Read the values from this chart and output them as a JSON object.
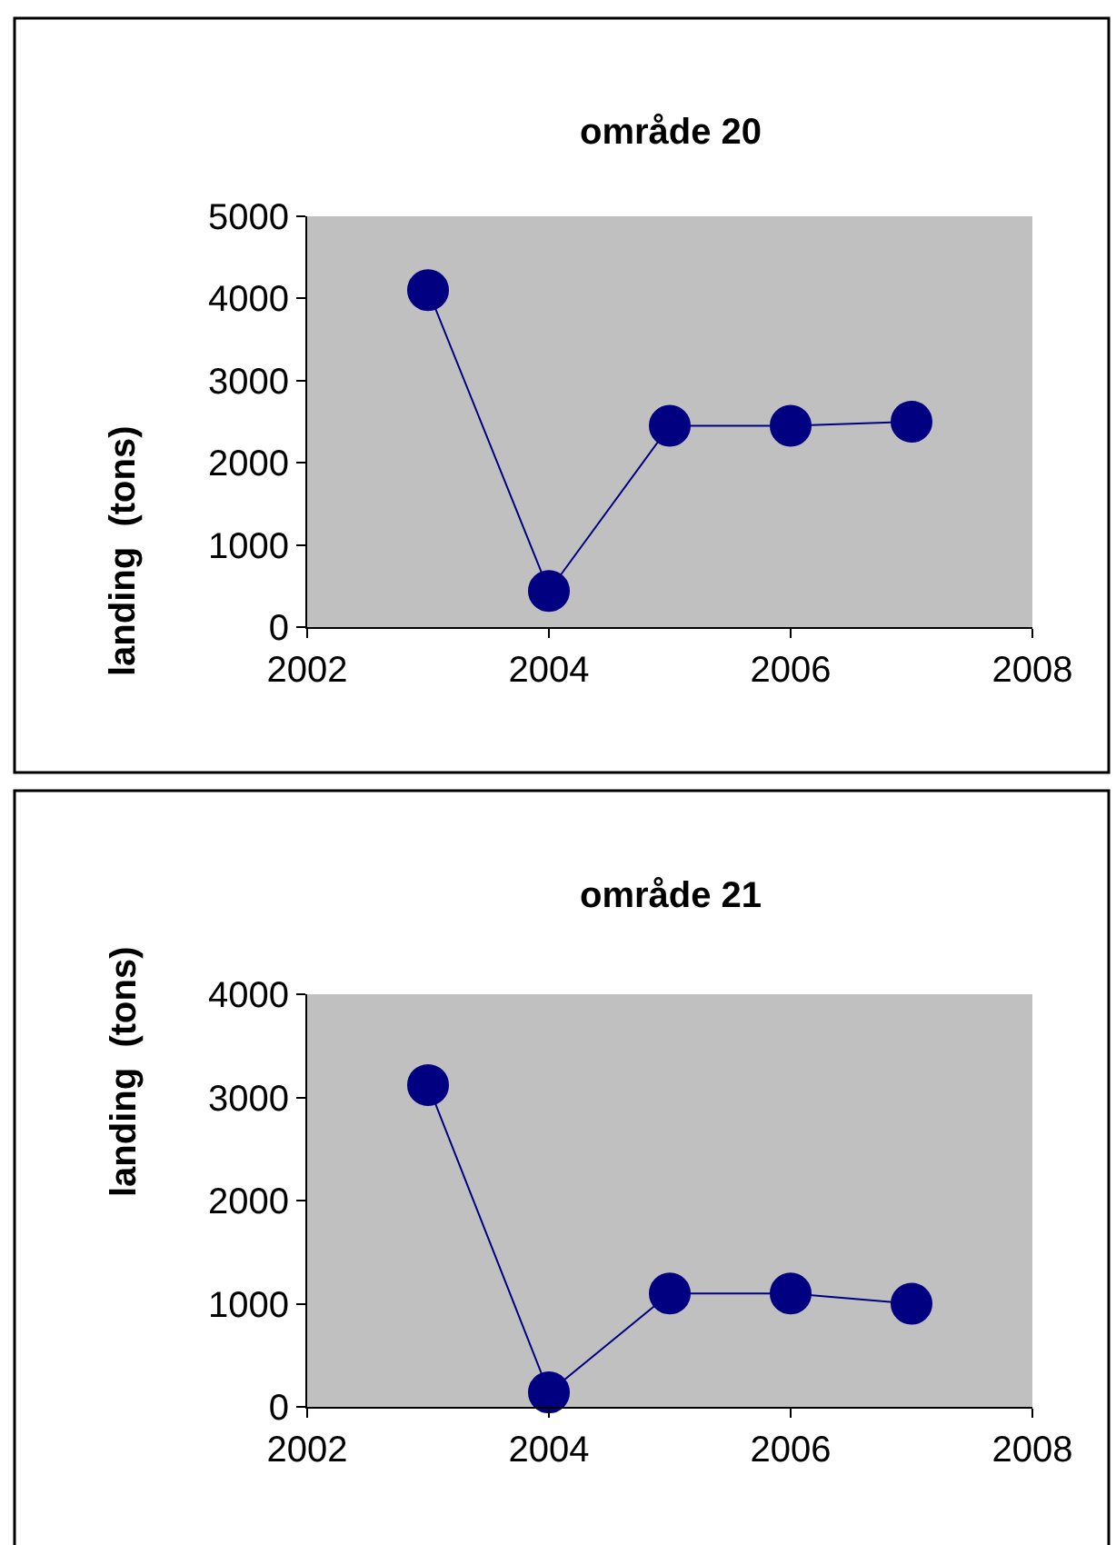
{
  "chart_data": [
    {
      "type": "line",
      "title": "område 20",
      "ylabel": "landing  (tons)",
      "x": [
        2003,
        2004,
        2005,
        2006,
        2007
      ],
      "series": [
        {
          "color": "#000080",
          "values": [
            4100,
            440,
            2450,
            2450,
            2500
          ]
        }
      ],
      "xlim": [
        2002,
        2008
      ],
      "xticks": [
        2002,
        2004,
        2006,
        2008
      ],
      "ylim": [
        0,
        5000
      ],
      "yticks": [
        0,
        1000,
        2000,
        3000,
        4000,
        5000
      ],
      "grid": false,
      "marker": "circle",
      "line_style": "solid"
    },
    {
      "type": "line",
      "title": "område 21",
      "ylabel": "landing  (tons)",
      "x": [
        2003,
        2004,
        2005,
        2006,
        2007
      ],
      "series": [
        {
          "color": "#000080",
          "values": [
            3120,
            140,
            1100,
            1100,
            1000
          ]
        }
      ],
      "xlim": [
        2002,
        2008
      ],
      "xticks": [
        2002,
        2004,
        2006,
        2008
      ],
      "ylim": [
        0,
        4000
      ],
      "yticks": [
        0,
        1000,
        2000,
        3000,
        4000
      ],
      "grid": false,
      "marker": "circle",
      "line_style": "solid"
    }
  ]
}
